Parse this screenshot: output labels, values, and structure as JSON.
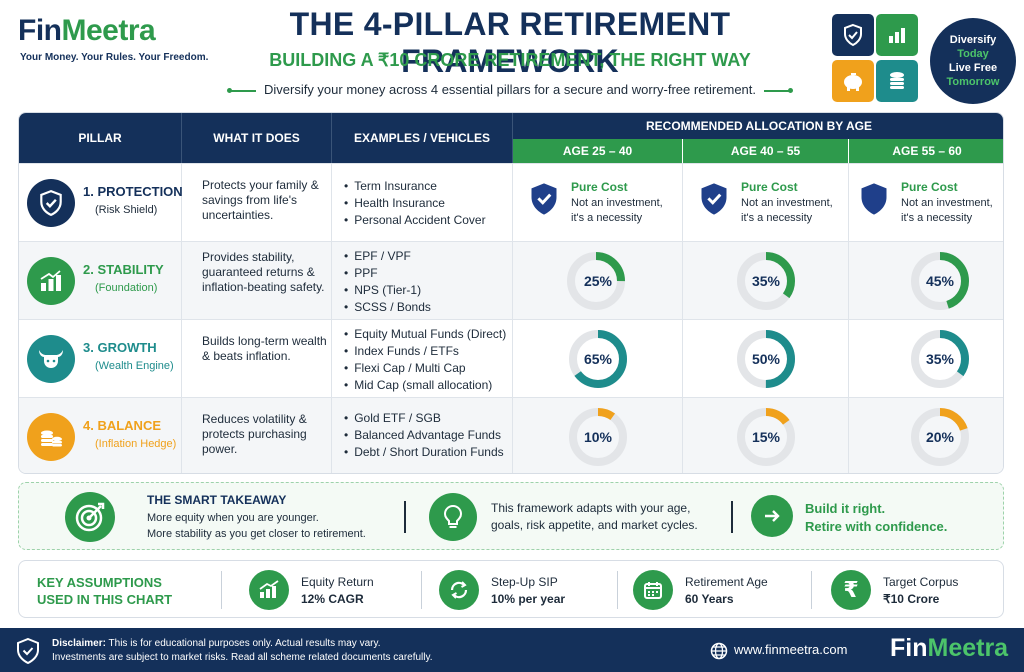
{
  "brand": {
    "name_part1": "Fin",
    "name_part2": "Meetra",
    "tagline": "Your Money. Your Rules. Your Freedom."
  },
  "header": {
    "title": "THE 4-PILLAR RETIREMENT FRAMEWORK",
    "subtitle": "BUILDING A ₹10 CRORE RETIREMENT, THE RIGHT WAY",
    "intro": "Diversify your money across 4 essential pillars for a secure and worry-free retirement."
  },
  "badge": {
    "line1": "Diversify",
    "line2": "Today",
    "line3": "Live Free",
    "line4": "Tomorrow"
  },
  "table": {
    "headers": {
      "pillar": "PILLAR",
      "what": "WHAT IT DOES",
      "examples": "EXAMPLES / VEHICLES",
      "alloc": "RECOMMENDED ALLOCATION BY AGE"
    },
    "ages": [
      "AGE 25 – 40",
      "AGE 40 – 55",
      "AGE 55 – 60"
    ],
    "rows": [
      {
        "name": "1. PROTECTION",
        "sub": "(Risk Shield)",
        "icon": "shield-check-icon",
        "color": "#14305a",
        "desc": "Protects your family & savings from life's uncertainties.",
        "examples": [
          "Term Insurance",
          "Health Insurance",
          "Personal Accident Cover"
        ],
        "protection": {
          "title": "Pure Cost",
          "line1": "Not an investment,",
          "line2": "it's a necessity"
        }
      },
      {
        "name": "2. STABILITY",
        "sub": "(Foundation)",
        "icon": "bar-chart-icon",
        "color": "#2e9a4c",
        "desc": "Provides stability, guaranteed returns & inflation-beating safety.",
        "examples": [
          "EPF / VPF",
          "PPF",
          "NPS (Tier-1)",
          "SCSS / Bonds"
        ],
        "alloc": [
          25,
          35,
          45
        ],
        "labels": [
          "25%",
          "35%",
          "45%"
        ]
      },
      {
        "name": "3. GROWTH",
        "sub": "(Wealth Engine)",
        "icon": "bull-icon",
        "color": "#1e8c8c",
        "desc": "Builds long-term wealth & beats inflation.",
        "examples": [
          "Equity Mutual Funds (Direct)",
          "Index Funds / ETFs",
          "Flexi Cap / Multi Cap",
          "Mid Cap (small allocation)"
        ],
        "alloc": [
          65,
          50,
          35
        ],
        "labels": [
          "65%",
          "50%",
          "35%"
        ]
      },
      {
        "name": "4. BALANCE",
        "sub": "(Inflation Hedge)",
        "icon": "coins-icon",
        "color": "#f0a11c",
        "desc": "Reduces volatility & protects purchasing power.",
        "examples": [
          "Gold ETF / SGB",
          "Balanced Advantage Funds",
          "Debt / Short Duration Funds"
        ],
        "alloc": [
          10,
          15,
          20
        ],
        "labels": [
          "10%",
          "15%",
          "20%"
        ]
      }
    ]
  },
  "takeaway": {
    "title": "THE SMART TAKEAWAY",
    "line1": "More equity when you are younger.",
    "line2": "More stability as you get closer to retirement.",
    "framework1": "This framework adapts with your age,",
    "framework2": "goals, risk appetite, and market cycles.",
    "build1": "Build it right.",
    "build2": "Retire with confidence."
  },
  "assumptions": {
    "title1": "KEY ASSUMPTIONS",
    "title2": "USED IN THIS CHART",
    "items": [
      {
        "label": "Equity Return",
        "value": "12% CAGR",
        "icon": "growth-chart-icon"
      },
      {
        "label": "Step-Up SIP",
        "value": "10% per year",
        "icon": "refresh-icon"
      },
      {
        "label": "Retirement Age",
        "value": "60 Years",
        "icon": "calendar-icon"
      },
      {
        "label": "Target Corpus",
        "value": "₹10 Crore",
        "icon": "rupee-icon"
      }
    ]
  },
  "footer": {
    "disclaimer_label": "Disclaimer:",
    "disclaimer_text": "This is for educational purposes only. Actual results may vary.",
    "disclaimer_line2": "Investments are subject to market risks. Read all scheme related documents carefully.",
    "website": "www.finmeetra.com",
    "logo_part1": "Fin",
    "logo_part2": "Meetra"
  },
  "colors": {
    "navy": "#14305a",
    "green": "#2e9a4c",
    "teal": "#1e8c8c",
    "orange": "#f0a11c",
    "ring_bg": "#e3e5e8"
  }
}
